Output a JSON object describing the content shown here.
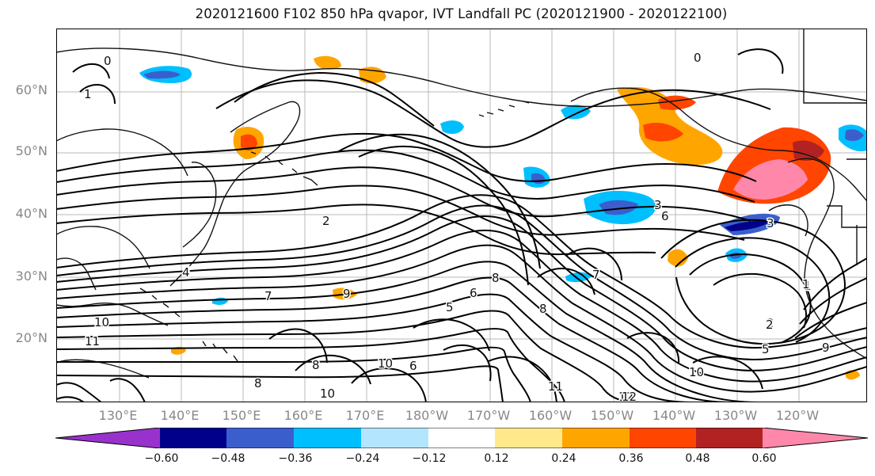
{
  "figure": {
    "title": "2020121600 F102 850 hPa qvapor, IVT Landfall PC (2020121900 - 2020122100)"
  },
  "axes": {
    "lat_labels": [
      "60°N",
      "50°N",
      "40°N",
      "30°N",
      "20°N"
    ],
    "lon_labels": [
      "130°E",
      "140°E",
      "150°E",
      "160°E",
      "170°E",
      "180°W",
      "170°W",
      "160°W",
      "150°W",
      "140°W",
      "130°W",
      "120°W"
    ]
  },
  "contours": {
    "labels": [
      "0",
      "1",
      "2",
      "3",
      "4",
      "5",
      "6",
      "7",
      "8",
      "9",
      "10",
      "11",
      "12",
      "0",
      "1",
      "2",
      "6",
      "8",
      "10",
      "10",
      "10",
      "8",
      "6",
      "7",
      "2",
      "1",
      "3",
      "8",
      "4",
      "11",
      "12",
      "5",
      "9"
    ]
  },
  "colorbar": {
    "ticks": [
      "−0.60",
      "−0.48",
      "−0.36",
      "−0.24",
      "−0.12",
      "0.12",
      "0.24",
      "0.36",
      "0.48",
      "0.60"
    ],
    "colors": [
      "#9932cc",
      "#00008b",
      "#3a5fcd",
      "#00bfff",
      "#b3e5ff",
      "#ffffff",
      "#ffe98b",
      "#ffa500",
      "#ff4500",
      "#b22222",
      "#ff88aa"
    ]
  }
}
